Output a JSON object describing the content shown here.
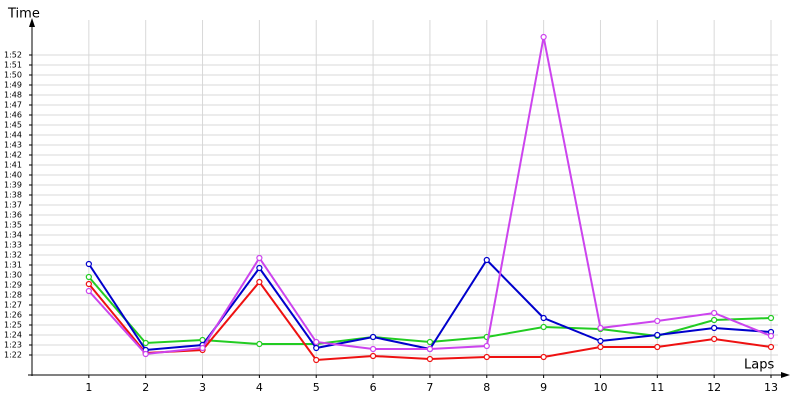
{
  "chart_data": {
    "type": "line",
    "ylabel": "Time",
    "xlabel": "Laps",
    "x": [
      1,
      2,
      3,
      4,
      5,
      6,
      7,
      8,
      9,
      10,
      11,
      12,
      13
    ],
    "xlim": [
      0,
      13
    ],
    "xticks": [
      1,
      2,
      3,
      4,
      5,
      6,
      7,
      8,
      9,
      10,
      11,
      12,
      13
    ],
    "ylim": [
      80,
      115
    ],
    "yticks": [
      {
        "value": 82,
        "label": "1:22"
      },
      {
        "value": 83,
        "label": "1:23"
      },
      {
        "value": 84,
        "label": "1:24"
      },
      {
        "value": 85,
        "label": "1:25"
      },
      {
        "value": 86,
        "label": "1:26"
      },
      {
        "value": 87,
        "label": "1:27"
      },
      {
        "value": 88,
        "label": "1:28"
      },
      {
        "value": 89,
        "label": "1:29"
      },
      {
        "value": 90,
        "label": "1:30"
      },
      {
        "value": 91,
        "label": "1:31"
      },
      {
        "value": 92,
        "label": "1:32"
      },
      {
        "value": 93,
        "label": "1:33"
      },
      {
        "value": 94,
        "label": "1:34"
      },
      {
        "value": 95,
        "label": "1:35"
      },
      {
        "value": 96,
        "label": "1:36"
      },
      {
        "value": 97,
        "label": "1:37"
      },
      {
        "value": 98,
        "label": "1:38"
      },
      {
        "value": 99,
        "label": "1:39"
      },
      {
        "value": 100,
        "label": "1:40"
      },
      {
        "value": 101,
        "label": "1:41"
      },
      {
        "value": 102,
        "label": "1:42"
      },
      {
        "value": 103,
        "label": "1:43"
      },
      {
        "value": 104,
        "label": "1:44"
      },
      {
        "value": 105,
        "label": "1:45"
      },
      {
        "value": 106,
        "label": "1:46"
      },
      {
        "value": 107,
        "label": "1:47"
      },
      {
        "value": 108,
        "label": "1:48"
      },
      {
        "value": 109,
        "label": "1:49"
      },
      {
        "value": 110,
        "label": "1:50"
      },
      {
        "value": 111,
        "label": "1:51"
      },
      {
        "value": 112,
        "label": "1:52"
      }
    ],
    "grid": true,
    "series": [
      {
        "color": "#22cc22",
        "values": [
          89.8,
          83.2,
          83.5,
          83.1,
          83.1,
          83.8,
          83.3,
          83.8,
          84.8,
          84.6,
          83.9,
          85.5,
          85.7
        ]
      },
      {
        "color": "#ee1111",
        "values": [
          89.1,
          82.2,
          82.5,
          89.3,
          81.5,
          81.9,
          81.6,
          81.8,
          81.8,
          82.8,
          82.8,
          83.6,
          82.8
        ]
      },
      {
        "color": "#0000cc",
        "values": [
          91.1,
          82.5,
          83.0,
          90.7,
          82.7,
          83.8,
          82.6,
          91.5,
          85.7,
          83.4,
          84.0,
          84.7,
          84.3
        ]
      },
      {
        "color": "#cc44ee",
        "values": [
          88.4,
          82.1,
          82.7,
          91.7,
          83.3,
          82.6,
          82.6,
          82.9,
          113.8,
          84.7,
          85.4,
          86.2,
          83.9
        ]
      }
    ]
  }
}
